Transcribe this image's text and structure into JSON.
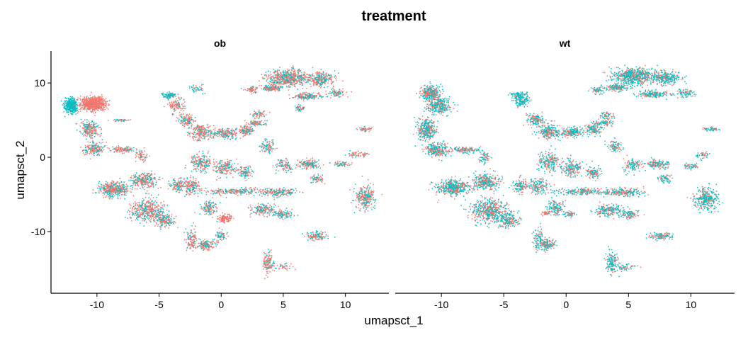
{
  "chart_data": {
    "type": "scatter",
    "title": "treatment",
    "xlabel": "umapsct_1",
    "ylabel": "umapsct_2",
    "xlim": [
      -13.7,
      13.5
    ],
    "ylim": [
      -18.3,
      14.3
    ],
    "x_ticks": [
      -10,
      -5,
      0,
      5,
      10
    ],
    "x_tick_labels": [
      "-10",
      "-5",
      "0",
      "5",
      "10"
    ],
    "y_ticks": [
      10,
      0,
      -10
    ],
    "y_tick_labels": [
      "10",
      "0",
      "-10"
    ],
    "grid": false,
    "legend": "none",
    "colors": {
      "ob": "#F8766D",
      "wt": "#00BFC4"
    },
    "panels": [
      {
        "label": "ob",
        "clusters": [
          {
            "x": -12.1,
            "y": 6.9,
            "sx": 0.45,
            "sy": 0.9,
            "n": 420,
            "pTeal": 0.97
          },
          {
            "x": -10.3,
            "y": 7.2,
            "sx": 0.9,
            "sy": 0.85,
            "n": 700,
            "pTeal": 0.05
          },
          {
            "x": -10.6,
            "y": 3.8,
            "sx": 0.7,
            "sy": 1.0,
            "n": 220,
            "pTeal": 0.35
          },
          {
            "x": -10.3,
            "y": 1.2,
            "sx": 0.7,
            "sy": 0.8,
            "n": 180,
            "pTeal": 0.35
          },
          {
            "x": -7.9,
            "y": 1.0,
            "sx": 1.0,
            "sy": 0.35,
            "n": 120,
            "pTeal": 0.3
          },
          {
            "x": -6.4,
            "y": 0.2,
            "sx": 0.45,
            "sy": 0.7,
            "n": 60,
            "pTeal": 0.3
          },
          {
            "x": -8.0,
            "y": 5.0,
            "sx": 0.8,
            "sy": 0.15,
            "n": 40,
            "pTeal": 0.4
          },
          {
            "x": -8.7,
            "y": -4.3,
            "sx": 1.1,
            "sy": 0.9,
            "n": 420,
            "pTeal": 0.4
          },
          {
            "x": -6.2,
            "y": -3.2,
            "sx": 1.0,
            "sy": 0.9,
            "n": 260,
            "pTeal": 0.4
          },
          {
            "x": -6.0,
            "y": -7.2,
            "sx": 1.2,
            "sy": 1.4,
            "n": 420,
            "pTeal": 0.4
          },
          {
            "x": -4.6,
            "y": -8.4,
            "sx": 0.7,
            "sy": 0.9,
            "n": 180,
            "pTeal": 0.45
          },
          {
            "x": -3.5,
            "y": -3.8,
            "sx": 0.6,
            "sy": 0.8,
            "n": 120,
            "pTeal": 0.4
          },
          {
            "x": -3.6,
            "y": 7.0,
            "sx": 0.6,
            "sy": 0.8,
            "n": 110,
            "pTeal": 0.15
          },
          {
            "x": -4.2,
            "y": 8.3,
            "sx": 0.5,
            "sy": 0.4,
            "n": 80,
            "pTeal": 0.85
          },
          {
            "x": -2.8,
            "y": 5.0,
            "sx": 0.6,
            "sy": 0.7,
            "n": 130,
            "pTeal": 0.35
          },
          {
            "x": -1.6,
            "y": 3.4,
            "sx": 0.8,
            "sy": 0.9,
            "n": 220,
            "pTeal": 0.4
          },
          {
            "x": 0.3,
            "y": 3.2,
            "sx": 0.9,
            "sy": 0.6,
            "n": 200,
            "pTeal": 0.4
          },
          {
            "x": 2.0,
            "y": 3.6,
            "sx": 0.6,
            "sy": 0.6,
            "n": 130,
            "pTeal": 0.4
          },
          {
            "x": 2.8,
            "y": 4.6,
            "sx": 0.7,
            "sy": 0.3,
            "n": 80,
            "pTeal": 0.4
          },
          {
            "x": -1.6,
            "y": -0.7,
            "sx": 0.8,
            "sy": 1.1,
            "n": 200,
            "pTeal": 0.4
          },
          {
            "x": -2.4,
            "y": -3.9,
            "sx": 0.7,
            "sy": 0.9,
            "n": 150,
            "pTeal": 0.4
          },
          {
            "x": 0.3,
            "y": -1.4,
            "sx": 0.8,
            "sy": 1.0,
            "n": 180,
            "pTeal": 0.45
          },
          {
            "x": 2.0,
            "y": -2.1,
            "sx": 0.5,
            "sy": 0.7,
            "n": 100,
            "pTeal": 0.45
          },
          {
            "x": 1.2,
            "y": -4.6,
            "sx": 2.2,
            "sy": 0.4,
            "n": 220,
            "pTeal": 0.45
          },
          {
            "x": 4.6,
            "y": -4.7,
            "sx": 1.3,
            "sy": 0.5,
            "n": 180,
            "pTeal": 0.45
          },
          {
            "x": 3.4,
            "y": -7.1,
            "sx": 1.0,
            "sy": 0.7,
            "n": 180,
            "pTeal": 0.45
          },
          {
            "x": 5.0,
            "y": -7.7,
            "sx": 0.7,
            "sy": 0.5,
            "n": 100,
            "pTeal": 0.45
          },
          {
            "x": -1.0,
            "y": -6.8,
            "sx": 0.6,
            "sy": 0.9,
            "n": 130,
            "pTeal": 0.45
          },
          {
            "x": 0.3,
            "y": -8.2,
            "sx": 0.5,
            "sy": 0.5,
            "n": 120,
            "pTeal": 0.08
          },
          {
            "x": -2.4,
            "y": -11.0,
            "sx": 0.4,
            "sy": 1.4,
            "n": 110,
            "pTeal": 0.3
          },
          {
            "x": -1.3,
            "y": -11.8,
            "sx": 0.7,
            "sy": 0.6,
            "n": 160,
            "pTeal": 0.35
          },
          {
            "x": 0.0,
            "y": -10.5,
            "sx": 0.5,
            "sy": 0.6,
            "n": 60,
            "pTeal": 0.5
          },
          {
            "x": 5.4,
            "y": 10.7,
            "sx": 1.6,
            "sy": 1.0,
            "n": 600,
            "pTeal": 0.4
          },
          {
            "x": 8.0,
            "y": 10.5,
            "sx": 1.0,
            "sy": 0.8,
            "n": 260,
            "pTeal": 0.4
          },
          {
            "x": 4.1,
            "y": 9.3,
            "sx": 0.8,
            "sy": 0.4,
            "n": 150,
            "pTeal": 0.3
          },
          {
            "x": 2.5,
            "y": 9.1,
            "sx": 0.5,
            "sy": 0.4,
            "n": 60,
            "pTeal": 0.3
          },
          {
            "x": 7.0,
            "y": 8.2,
            "sx": 1.2,
            "sy": 0.4,
            "n": 180,
            "pTeal": 0.45
          },
          {
            "x": 9.3,
            "y": 8.6,
            "sx": 0.6,
            "sy": 0.5,
            "n": 80,
            "pTeal": 0.5
          },
          {
            "x": 6.3,
            "y": 6.6,
            "sx": 0.4,
            "sy": 0.4,
            "n": 40,
            "pTeal": 0.45
          },
          {
            "x": 3.0,
            "y": 5.8,
            "sx": 0.6,
            "sy": 0.5,
            "n": 60,
            "pTeal": 0.4
          },
          {
            "x": 3.7,
            "y": 1.5,
            "sx": 0.5,
            "sy": 0.8,
            "n": 90,
            "pTeal": 0.45
          },
          {
            "x": 5.1,
            "y": -1.1,
            "sx": 0.6,
            "sy": 0.8,
            "n": 100,
            "pTeal": 0.45
          },
          {
            "x": 7.1,
            "y": -0.9,
            "sx": 0.8,
            "sy": 0.5,
            "n": 160,
            "pTeal": 0.45
          },
          {
            "x": 7.7,
            "y": -2.9,
            "sx": 0.5,
            "sy": 0.5,
            "n": 60,
            "pTeal": 0.45
          },
          {
            "x": 9.8,
            "y": -0.9,
            "sx": 0.6,
            "sy": 0.3,
            "n": 60,
            "pTeal": 0.4
          },
          {
            "x": 10.7,
            "y": 0.4,
            "sx": 0.5,
            "sy": 0.4,
            "n": 40,
            "pTeal": 0.4
          },
          {
            "x": 11.5,
            "y": 0.4,
            "sx": 0.3,
            "sy": 0.3,
            "n": 20,
            "pTeal": 0.4
          },
          {
            "x": 11.6,
            "y": 3.8,
            "sx": 0.5,
            "sy": 0.25,
            "n": 50,
            "pTeal": 0.3
          },
          {
            "x": 11.6,
            "y": -5.4,
            "sx": 0.7,
            "sy": 1.3,
            "n": 280,
            "pTeal": 0.4
          },
          {
            "x": 7.7,
            "y": -10.6,
            "sx": 0.8,
            "sy": 0.5,
            "n": 130,
            "pTeal": 0.4
          },
          {
            "x": 3.8,
            "y": -14.2,
            "sx": 0.4,
            "sy": 1.2,
            "n": 130,
            "pTeal": 0.3
          },
          {
            "x": 5.0,
            "y": -14.7,
            "sx": 0.6,
            "sy": 0.4,
            "n": 40,
            "pTeal": 0.3
          },
          {
            "x": -2.0,
            "y": 9.3,
            "sx": 0.6,
            "sy": 0.5,
            "n": 40,
            "pTeal": 0.6
          }
        ]
      },
      {
        "label": "wt",
        "clusters": [
          {
            "x": -10.9,
            "y": 8.6,
            "sx": 0.7,
            "sy": 0.9,
            "n": 320,
            "pTeal": 0.6
          },
          {
            "x": -10.2,
            "y": 7.0,
            "sx": 0.9,
            "sy": 1.0,
            "n": 300,
            "pTeal": 0.6
          },
          {
            "x": -11.2,
            "y": 3.8,
            "sx": 0.7,
            "sy": 1.2,
            "n": 340,
            "pTeal": 0.6
          },
          {
            "x": -10.4,
            "y": 1.0,
            "sx": 0.8,
            "sy": 0.8,
            "n": 260,
            "pTeal": 0.6
          },
          {
            "x": -8.0,
            "y": 1.0,
            "sx": 1.0,
            "sy": 0.35,
            "n": 120,
            "pTeal": 0.55
          },
          {
            "x": -6.5,
            "y": 0.0,
            "sx": 0.45,
            "sy": 0.7,
            "n": 60,
            "pTeal": 0.55
          },
          {
            "x": -9.0,
            "y": -4.1,
            "sx": 1.2,
            "sy": 0.9,
            "n": 460,
            "pTeal": 0.6
          },
          {
            "x": -6.5,
            "y": -3.3,
            "sx": 1.0,
            "sy": 0.9,
            "n": 300,
            "pTeal": 0.6
          },
          {
            "x": -6.2,
            "y": -7.2,
            "sx": 1.3,
            "sy": 1.4,
            "n": 500,
            "pTeal": 0.6
          },
          {
            "x": -4.6,
            "y": -8.4,
            "sx": 0.7,
            "sy": 0.9,
            "n": 180,
            "pTeal": 0.6
          },
          {
            "x": -3.6,
            "y": -3.8,
            "sx": 0.6,
            "sy": 0.8,
            "n": 120,
            "pTeal": 0.6
          },
          {
            "x": -3.6,
            "y": 7.5,
            "sx": 0.6,
            "sy": 0.8,
            "n": 130,
            "pTeal": 0.75
          },
          {
            "x": -3.8,
            "y": 8.3,
            "sx": 0.5,
            "sy": 0.4,
            "n": 90,
            "pTeal": 0.85
          },
          {
            "x": -2.4,
            "y": 5.0,
            "sx": 0.6,
            "sy": 0.7,
            "n": 140,
            "pTeal": 0.6
          },
          {
            "x": -1.4,
            "y": 3.4,
            "sx": 0.8,
            "sy": 0.9,
            "n": 220,
            "pTeal": 0.6
          },
          {
            "x": 0.5,
            "y": 3.4,
            "sx": 0.9,
            "sy": 0.6,
            "n": 200,
            "pTeal": 0.6
          },
          {
            "x": 2.2,
            "y": 3.8,
            "sx": 0.6,
            "sy": 0.6,
            "n": 130,
            "pTeal": 0.6
          },
          {
            "x": 3.0,
            "y": 4.6,
            "sx": 0.7,
            "sy": 0.3,
            "n": 80,
            "pTeal": 0.6
          },
          {
            "x": -1.4,
            "y": -0.7,
            "sx": 0.8,
            "sy": 1.1,
            "n": 200,
            "pTeal": 0.6
          },
          {
            "x": -2.2,
            "y": -3.9,
            "sx": 0.7,
            "sy": 0.9,
            "n": 150,
            "pTeal": 0.6
          },
          {
            "x": 0.5,
            "y": -1.4,
            "sx": 0.8,
            "sy": 1.0,
            "n": 180,
            "pTeal": 0.6
          },
          {
            "x": 2.2,
            "y": -2.1,
            "sx": 0.5,
            "sy": 0.7,
            "n": 100,
            "pTeal": 0.6
          },
          {
            "x": 1.4,
            "y": -4.6,
            "sx": 2.2,
            "sy": 0.4,
            "n": 220,
            "pTeal": 0.6
          },
          {
            "x": 4.6,
            "y": -4.7,
            "sx": 1.3,
            "sy": 0.5,
            "n": 200,
            "pTeal": 0.6
          },
          {
            "x": 3.4,
            "y": -7.1,
            "sx": 1.0,
            "sy": 0.7,
            "n": 200,
            "pTeal": 0.6
          },
          {
            "x": 5.0,
            "y": -7.7,
            "sx": 0.7,
            "sy": 0.5,
            "n": 100,
            "pTeal": 0.6
          },
          {
            "x": -0.8,
            "y": -6.8,
            "sx": 0.6,
            "sy": 0.9,
            "n": 130,
            "pTeal": 0.6
          },
          {
            "x": 0.3,
            "y": -7.6,
            "sx": 0.4,
            "sy": 0.4,
            "n": 50,
            "pTeal": 0.4
          },
          {
            "x": -2.2,
            "y": -11.0,
            "sx": 0.4,
            "sy": 1.4,
            "n": 110,
            "pTeal": 0.7
          },
          {
            "x": -1.5,
            "y": -11.8,
            "sx": 0.6,
            "sy": 0.6,
            "n": 130,
            "pTeal": 0.6
          },
          {
            "x": 5.4,
            "y": 10.9,
            "sx": 1.6,
            "sy": 1.0,
            "n": 650,
            "pTeal": 0.65
          },
          {
            "x": 8.0,
            "y": 10.7,
            "sx": 1.0,
            "sy": 0.8,
            "n": 280,
            "pTeal": 0.65
          },
          {
            "x": 4.1,
            "y": 9.4,
            "sx": 0.8,
            "sy": 0.4,
            "n": 160,
            "pTeal": 0.6
          },
          {
            "x": 2.5,
            "y": 9.0,
            "sx": 0.5,
            "sy": 0.4,
            "n": 60,
            "pTeal": 0.6
          },
          {
            "x": 7.0,
            "y": 8.5,
            "sx": 1.2,
            "sy": 0.4,
            "n": 200,
            "pTeal": 0.65
          },
          {
            "x": 9.5,
            "y": 8.6,
            "sx": 0.6,
            "sy": 0.5,
            "n": 80,
            "pTeal": 0.6
          },
          {
            "x": 3.2,
            "y": 5.6,
            "sx": 0.6,
            "sy": 0.5,
            "n": 60,
            "pTeal": 0.6
          },
          {
            "x": 3.9,
            "y": 1.5,
            "sx": 0.5,
            "sy": 0.8,
            "n": 90,
            "pTeal": 0.6
          },
          {
            "x": 5.3,
            "y": -1.1,
            "sx": 0.6,
            "sy": 0.8,
            "n": 100,
            "pTeal": 0.6
          },
          {
            "x": 7.3,
            "y": -0.9,
            "sx": 0.8,
            "sy": 0.5,
            "n": 160,
            "pTeal": 0.6
          },
          {
            "x": 7.9,
            "y": -2.9,
            "sx": 0.5,
            "sy": 0.5,
            "n": 60,
            "pTeal": 0.6
          },
          {
            "x": 10.0,
            "y": -1.2,
            "sx": 0.6,
            "sy": 0.3,
            "n": 60,
            "pTeal": 0.6
          },
          {
            "x": 10.9,
            "y": 0.3,
            "sx": 0.5,
            "sy": 0.4,
            "n": 40,
            "pTeal": 0.6
          },
          {
            "x": 11.6,
            "y": 3.8,
            "sx": 0.5,
            "sy": 0.25,
            "n": 50,
            "pTeal": 0.6
          },
          {
            "x": 11.2,
            "y": -5.6,
            "sx": 0.8,
            "sy": 1.3,
            "n": 320,
            "pTeal": 0.7
          },
          {
            "x": 7.6,
            "y": -10.6,
            "sx": 0.8,
            "sy": 0.5,
            "n": 130,
            "pTeal": 0.6
          },
          {
            "x": 3.7,
            "y": -14.2,
            "sx": 0.4,
            "sy": 1.3,
            "n": 140,
            "pTeal": 0.75
          },
          {
            "x": 4.8,
            "y": -14.8,
            "sx": 0.6,
            "sy": 0.4,
            "n": 50,
            "pTeal": 0.75
          },
          {
            "x": -1.6,
            "y": -7.5,
            "sx": 0.3,
            "sy": 0.3,
            "n": 40,
            "pTeal": 0.1
          }
        ]
      }
    ]
  }
}
